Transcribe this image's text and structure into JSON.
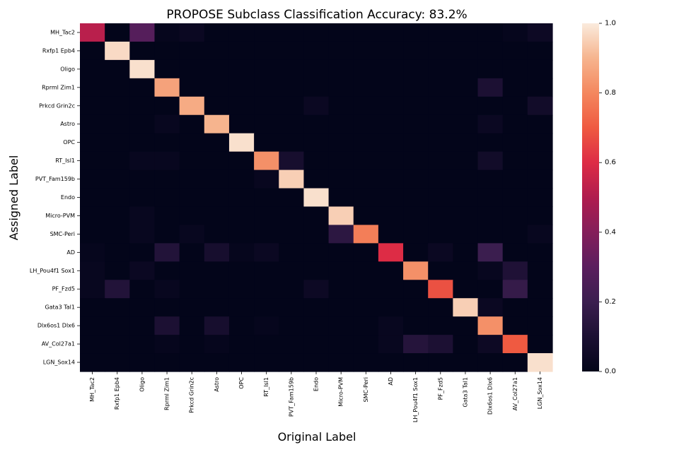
{
  "chart_data": {
    "type": "heatmap",
    "title": "PROPOSE Subclass Classification Accuracy: 83.2%",
    "xlabel": "Original Label",
    "ylabel": "Assigned Label",
    "x_categories": [
      "MH_Tac2",
      "Rxfp1 Epb4",
      "Oligo",
      "Rprml Zim1",
      "Prkcd Grin2c",
      "Astro",
      "OPC",
      "RT_Isl1",
      "PVT_Fam159b",
      "Endo",
      "Micro-PVM",
      "SMC-Peri",
      "AD",
      "LH_Pou4f1 Sox1",
      "PF_Fzd5",
      "Gata3 Tal1",
      "Dlx6os1 Dlx6",
      "AV_Col27a1",
      "LGN_Sox14"
    ],
    "y_categories": [
      "MH_Tac2",
      "Rxfp1 Epb4",
      "Oligo",
      "Rprml Zim1",
      "Prkcd Grin2c",
      "Astro",
      "OPC",
      "RT_Isl1",
      "PVT_Fam159b",
      "Endo",
      "Micro-PVM",
      "SMC-Peri",
      "AD",
      "LH_Pou4f1 Sox1",
      "PF_Fzd5",
      "Gata3 Tal1",
      "Dlx6os1 Dlx6",
      "AV_Col27a1",
      "LGN_Sox14"
    ],
    "values": [
      [
        0.52,
        0.0,
        0.28,
        0.01,
        0.03,
        0.0,
        0.0,
        0.0,
        0.0,
        0.0,
        0.0,
        0.0,
        0.0,
        0.0,
        0.0,
        0.0,
        0.0,
        0.01,
        0.04
      ],
      [
        0.0,
        0.97,
        0.0,
        0.0,
        0.0,
        0.0,
        0.0,
        0.0,
        0.0,
        0.0,
        0.0,
        0.0,
        0.0,
        0.0,
        0.0,
        0.0,
        0.0,
        0.0,
        0.0
      ],
      [
        0.0,
        0.0,
        0.98,
        0.0,
        0.0,
        0.0,
        0.0,
        0.0,
        0.0,
        0.0,
        0.0,
        0.0,
        0.0,
        0.0,
        0.0,
        0.0,
        0.0,
        0.0,
        0.0
      ],
      [
        0.0,
        0.0,
        0.0,
        0.86,
        0.0,
        0.0,
        0.0,
        0.0,
        0.0,
        0.0,
        0.0,
        0.0,
        0.0,
        0.0,
        0.0,
        0.0,
        0.1,
        0.0,
        0.0
      ],
      [
        0.0,
        0.0,
        0.0,
        0.0,
        0.88,
        0.0,
        0.0,
        0.0,
        0.0,
        0.03,
        0.0,
        0.0,
        0.0,
        0.0,
        0.0,
        0.0,
        0.0,
        0.0,
        0.06
      ],
      [
        0.0,
        0.0,
        0.0,
        0.02,
        0.0,
        0.9,
        0.0,
        0.0,
        0.0,
        0.0,
        0.0,
        0.0,
        0.0,
        0.0,
        0.0,
        0.0,
        0.03,
        0.0,
        0.0
      ],
      [
        0.0,
        0.0,
        0.0,
        0.0,
        0.0,
        0.0,
        0.98,
        0.0,
        0.0,
        0.0,
        0.0,
        0.0,
        0.0,
        0.0,
        0.0,
        0.0,
        0.0,
        0.0,
        0.0
      ],
      [
        0.0,
        0.0,
        0.02,
        0.02,
        0.0,
        0.0,
        0.0,
        0.82,
        0.08,
        0.0,
        0.0,
        0.0,
        0.0,
        0.0,
        0.0,
        0.0,
        0.06,
        0.0,
        0.0
      ],
      [
        0.0,
        0.0,
        0.0,
        0.0,
        0.0,
        0.0,
        0.0,
        0.02,
        0.95,
        0.0,
        0.0,
        0.0,
        0.0,
        0.0,
        0.0,
        0.0,
        0.0,
        0.0,
        0.0
      ],
      [
        0.0,
        0.0,
        0.0,
        0.0,
        0.0,
        0.0,
        0.0,
        0.0,
        0.0,
        0.98,
        0.0,
        0.0,
        0.0,
        0.0,
        0.0,
        0.0,
        0.0,
        0.0,
        0.0
      ],
      [
        0.0,
        0.0,
        0.02,
        0.0,
        0.0,
        0.0,
        0.0,
        0.0,
        0.0,
        0.0,
        0.95,
        0.0,
        0.0,
        0.0,
        0.0,
        0.0,
        0.0,
        0.0,
        0.0
      ],
      [
        0.0,
        0.0,
        0.02,
        0.0,
        0.02,
        0.0,
        0.0,
        0.0,
        0.0,
        0.0,
        0.15,
        0.78,
        0.0,
        0.0,
        0.0,
        0.0,
        0.0,
        0.0,
        0.02
      ],
      [
        0.01,
        0.0,
        0.0,
        0.12,
        0.0,
        0.08,
        0.01,
        0.03,
        0.0,
        0.0,
        0.0,
        0.0,
        0.6,
        0.0,
        0.03,
        0.0,
        0.2,
        0.0,
        0.0
      ],
      [
        0.02,
        0.0,
        0.03,
        0.0,
        0.0,
        0.0,
        0.0,
        0.0,
        0.0,
        0.0,
        0.0,
        0.0,
        0.0,
        0.82,
        0.0,
        0.0,
        0.02,
        0.11,
        0.0
      ],
      [
        0.02,
        0.12,
        0.0,
        0.02,
        0.0,
        0.0,
        0.0,
        0.0,
        0.0,
        0.04,
        0.0,
        0.0,
        0.0,
        0.0,
        0.68,
        0.0,
        0.0,
        0.18,
        0.0
      ],
      [
        0.0,
        0.0,
        0.0,
        0.0,
        0.0,
        0.0,
        0.0,
        0.0,
        0.0,
        0.0,
        0.0,
        0.0,
        0.0,
        0.0,
        0.0,
        0.95,
        0.03,
        0.0,
        0.0
      ],
      [
        0.0,
        0.0,
        0.0,
        0.1,
        0.0,
        0.08,
        0.0,
        0.01,
        0.0,
        0.0,
        0.0,
        0.0,
        0.02,
        0.0,
        0.0,
        0.0,
        0.82,
        0.0,
        0.0
      ],
      [
        0.0,
        0.0,
        0.0,
        0.01,
        0.0,
        0.01,
        0.0,
        0.0,
        0.0,
        0.0,
        0.0,
        0.0,
        0.02,
        0.13,
        0.1,
        0.0,
        0.04,
        0.7,
        0.0
      ],
      [
        0.0,
        0.0,
        0.0,
        0.0,
        0.0,
        0.0,
        0.0,
        0.0,
        0.0,
        0.0,
        0.0,
        0.0,
        0.0,
        0.0,
        0.0,
        0.0,
        0.0,
        0.0,
        0.98
      ]
    ],
    "colormap": "rocket",
    "colorbar": {
      "vmin": 0.0,
      "vmax": 1.0,
      "ticks": [
        "0.0",
        "0.2",
        "0.4",
        "0.6",
        "0.8",
        "1.0"
      ]
    },
    "grid": false,
    "legend": "colorbar-right"
  }
}
